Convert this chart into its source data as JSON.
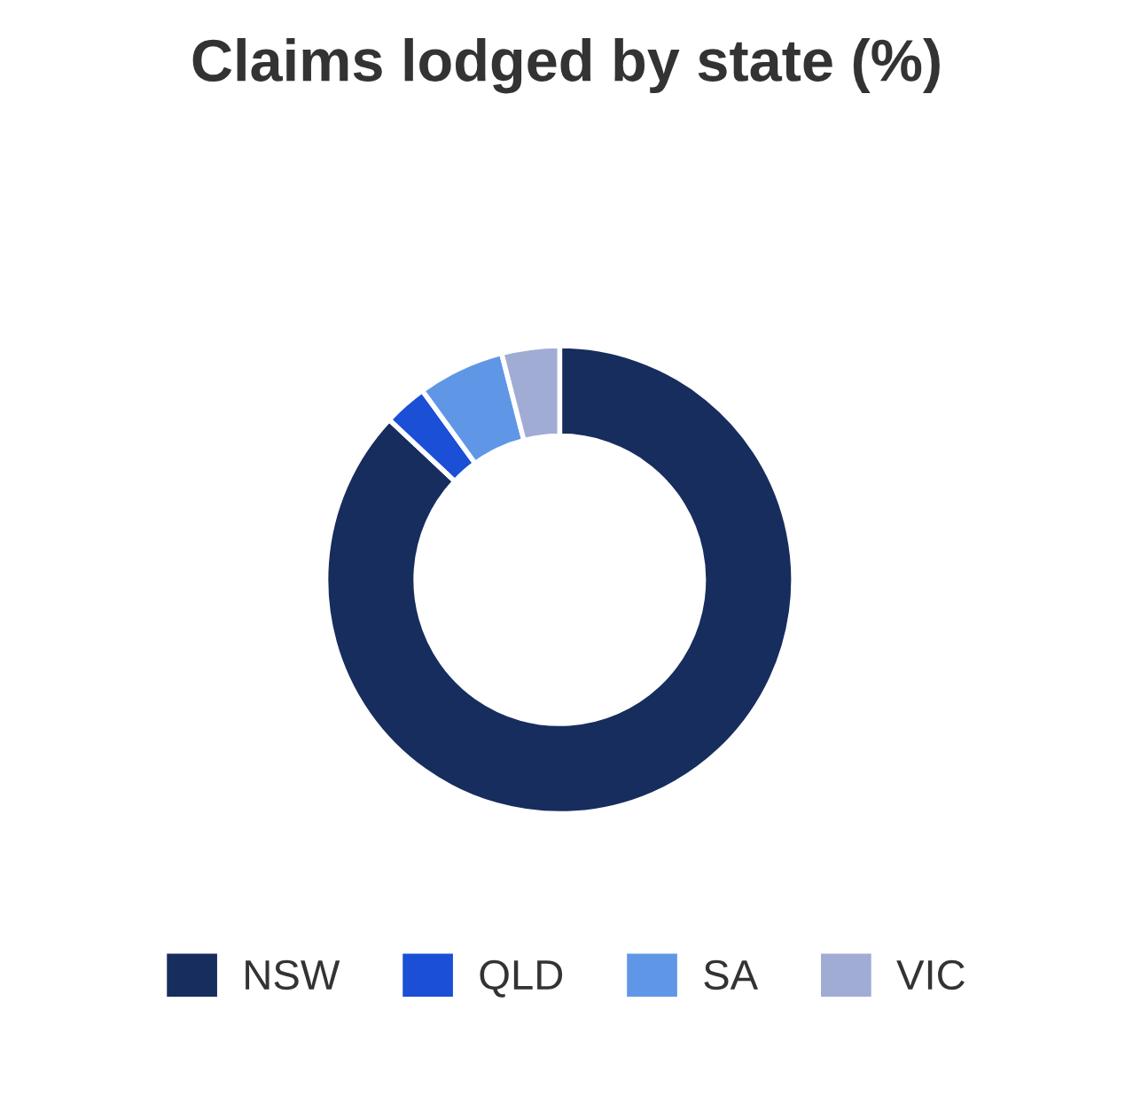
{
  "chart_data": {
    "type": "donut",
    "title": "Claims lodged by state (%)",
    "categories": [
      "NSW",
      "QLD",
      "SA",
      "VIC"
    ],
    "values": [
      87,
      3,
      6,
      4
    ],
    "colors": [
      "#172d5e",
      "#1a4fd6",
      "#6096e6",
      "#a0acd3"
    ],
    "legend": "bottom"
  }
}
